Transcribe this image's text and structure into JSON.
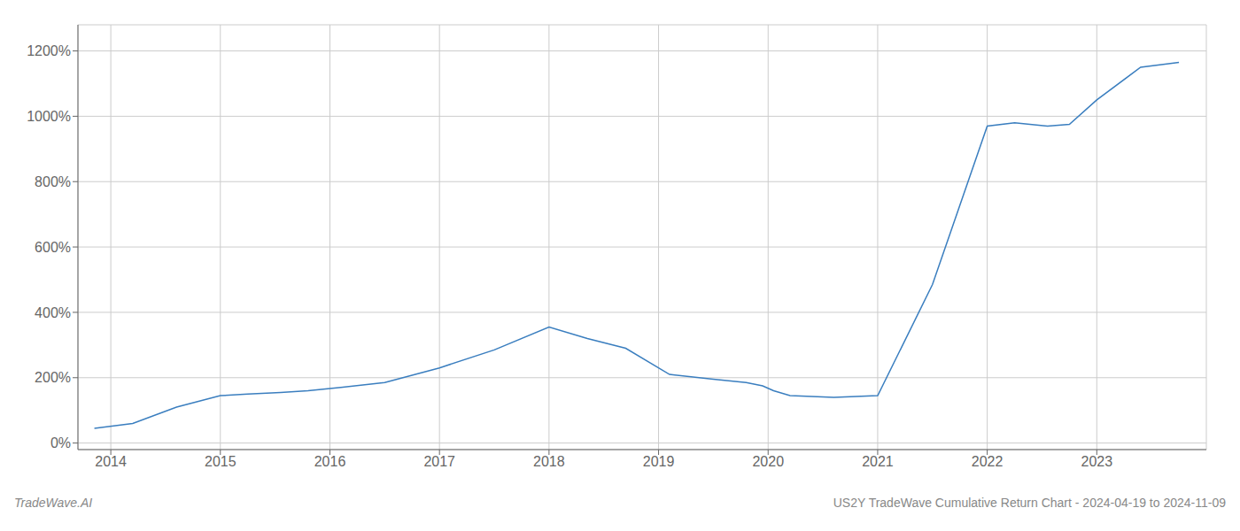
{
  "chart_data": {
    "type": "line",
    "x": [
      2013.85,
      2014.2,
      2014.6,
      2015.0,
      2015.25,
      2015.55,
      2015.8,
      2016.1,
      2016.5,
      2017.0,
      2017.5,
      2018.0,
      2018.35,
      2018.7,
      2019.1,
      2019.5,
      2019.8,
      2019.95,
      2020.05,
      2020.2,
      2020.6,
      2021.0,
      2021.5,
      2022.0,
      2022.25,
      2022.55,
      2022.75,
      2023.0,
      2023.4,
      2023.75
    ],
    "values": [
      0.45,
      0.6,
      1.1,
      1.45,
      1.5,
      1.55,
      1.6,
      1.7,
      1.85,
      2.3,
      2.85,
      3.55,
      3.2,
      2.9,
      2.1,
      1.95,
      1.85,
      1.75,
      1.6,
      1.45,
      1.4,
      1.45,
      4.85,
      9.7,
      9.8,
      9.7,
      9.75,
      10.5,
      11.5,
      11.65
    ],
    "color": "#3a7ebf",
    "xlim": [
      2013.7,
      2024.0
    ],
    "ylim": [
      -0.2,
      12.8
    ],
    "xticks": [
      2014,
      2015,
      2016,
      2017,
      2018,
      2019,
      2020,
      2021,
      2022,
      2023
    ],
    "yticks": [
      {
        "value": 0,
        "label": "0%"
      },
      {
        "value": 2,
        "label": "200%"
      },
      {
        "value": 4,
        "label": "400%"
      },
      {
        "value": 6,
        "label": "600%"
      },
      {
        "value": 8,
        "label": "800%"
      },
      {
        "value": 10,
        "label": "1000%"
      },
      {
        "value": 12,
        "label": "1200%"
      }
    ],
    "grid": true,
    "annotations": [
      "TradeWave.AI",
      "US2Y TradeWave Cumulative Return Chart - 2024-04-19 to 2024-11-09"
    ]
  }
}
